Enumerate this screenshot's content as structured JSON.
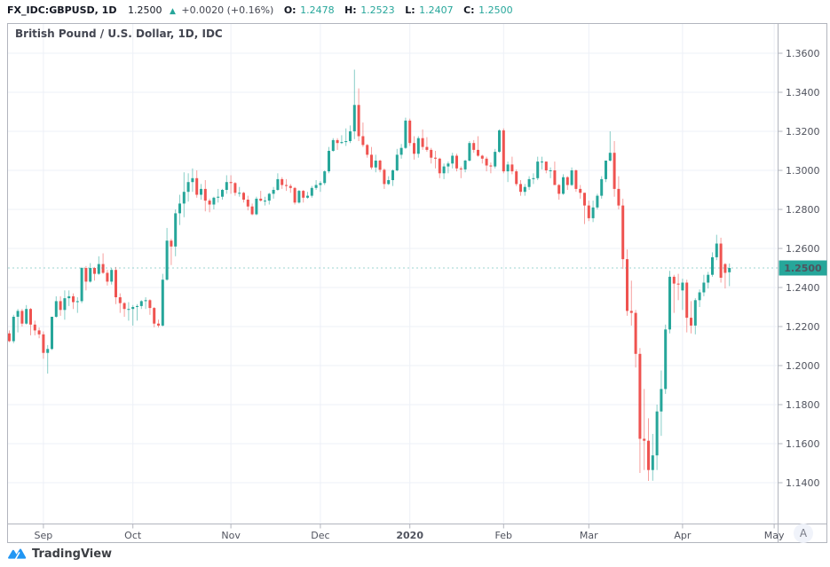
{
  "header": {
    "symbol": "FX_IDC:GBPUSD, 1D",
    "price": "1.2500",
    "direction_arrow": "▲",
    "change": "+0.0020 (+0.16%)",
    "o_label": "O:",
    "o_value": "1.2478",
    "h_label": "H:",
    "h_value": "1.2523",
    "l_label": "L:",
    "l_value": "1.2407",
    "c_label": "C:",
    "c_value": "1.2500"
  },
  "legend": "British Pound / U.S. Dollar, 1D, IDC",
  "price_scale": {
    "auto_button": "A"
  },
  "footer": {
    "brand": "TradingView"
  },
  "colors": {
    "up": "#26a69a",
    "down": "#ef5350",
    "grid": "#edf0f7",
    "border": "#b2b5be",
    "axis_text": "#50535e",
    "badge_bg": "#26a69a",
    "badge_text": "#ffffff",
    "brand_blue": "#2196f3",
    "header_text": "#131722",
    "ohlc_value": "#26a69a"
  },
  "chart_data": {
    "type": "candlestick",
    "title": "British Pound / U.S. Dollar, 1D, IDC",
    "symbol": "FX_IDC:GBPUSD",
    "interval": "1D",
    "last_price": 1.25,
    "last_candle_ohlc": {
      "o": 1.2478,
      "h": 1.2523,
      "l": 1.2407,
      "c": 1.25
    },
    "y_axis": {
      "ticks": [
        1.36,
        1.34,
        1.32,
        1.3,
        1.28,
        1.26,
        1.24,
        1.22,
        1.2,
        1.18,
        1.16,
        1.14
      ],
      "decimals": 4
    },
    "x_axis": {
      "labels": [
        "Sep",
        "Oct",
        "Nov",
        "Dec",
        "2020",
        "Feb",
        "Mar",
        "Apr",
        "May"
      ],
      "indices": [
        8,
        29,
        52,
        73,
        94,
        116,
        136,
        158,
        179.5
      ],
      "bold": [
        false,
        false,
        false,
        false,
        true,
        false,
        false,
        false,
        false
      ]
    },
    "grid": true,
    "candles": [
      [
        1.2165,
        1.218,
        1.212,
        1.2125
      ],
      [
        1.2125,
        1.226,
        1.2115,
        1.225
      ],
      [
        1.225,
        1.229,
        1.217,
        1.228
      ],
      [
        1.228,
        1.229,
        1.22,
        1.2215
      ],
      [
        1.2215,
        1.231,
        1.221,
        1.229
      ],
      [
        1.229,
        1.2295,
        1.2155,
        1.221
      ],
      [
        1.221,
        1.223,
        1.2155,
        1.218
      ],
      [
        1.218,
        1.2195,
        1.214,
        1.216
      ],
      [
        1.216,
        1.2175,
        1.2035,
        1.2065
      ],
      [
        1.2065,
        1.2105,
        1.1959,
        1.2085
      ],
      [
        1.2085,
        1.225,
        1.208,
        1.225
      ],
      [
        1.225,
        1.2355,
        1.2245,
        1.233
      ],
      [
        1.233,
        1.2355,
        1.2255,
        1.2285
      ],
      [
        1.2285,
        1.2385,
        1.2235,
        1.2345
      ],
      [
        1.2345,
        1.2385,
        1.2305,
        1.2355
      ],
      [
        1.2355,
        1.237,
        1.229,
        1.2325
      ],
      [
        1.2325,
        1.235,
        1.227,
        1.233
      ],
      [
        1.233,
        1.2505,
        1.232,
        1.25
      ],
      [
        1.25,
        1.251,
        1.2385,
        1.243
      ],
      [
        1.243,
        1.2525,
        1.2425,
        1.25
      ],
      [
        1.25,
        1.2505,
        1.2435,
        1.247
      ],
      [
        1.247,
        1.256,
        1.2465,
        1.252
      ],
      [
        1.252,
        1.2575,
        1.247,
        1.2475
      ],
      [
        1.2475,
        1.249,
        1.241,
        1.243
      ],
      [
        1.243,
        1.25,
        1.2415,
        1.249
      ],
      [
        1.249,
        1.2505,
        1.2315,
        1.235
      ],
      [
        1.235,
        1.237,
        1.227,
        1.232
      ],
      [
        1.232,
        1.2325,
        1.225,
        1.229
      ],
      [
        1.229,
        1.2325,
        1.223,
        1.229
      ],
      [
        1.229,
        1.231,
        1.2205,
        1.23
      ],
      [
        1.23,
        1.2315,
        1.223,
        1.2305
      ],
      [
        1.2305,
        1.2335,
        1.229,
        1.233
      ],
      [
        1.233,
        1.235,
        1.229,
        1.2335
      ],
      [
        1.2335,
        1.234,
        1.226,
        1.2295
      ],
      [
        1.2295,
        1.23,
        1.2196,
        1.2215
      ],
      [
        1.2215,
        1.2235,
        1.2195,
        1.2205
      ],
      [
        1.2205,
        1.247,
        1.22,
        1.244
      ],
      [
        1.244,
        1.2705,
        1.2435,
        1.264
      ],
      [
        1.264,
        1.265,
        1.2515,
        1.261
      ],
      [
        1.261,
        1.28,
        1.256,
        1.278
      ],
      [
        1.278,
        1.2875,
        1.272,
        1.283
      ],
      [
        1.283,
        1.299,
        1.276,
        1.289
      ],
      [
        1.289,
        1.2985,
        1.284,
        1.294
      ],
      [
        1.294,
        1.301,
        1.289,
        1.296
      ],
      [
        1.296,
        1.3,
        1.286,
        1.2875
      ],
      [
        1.2875,
        1.293,
        1.285,
        1.2905
      ],
      [
        1.2905,
        1.295,
        1.279,
        1.2845
      ],
      [
        1.2845,
        1.2855,
        1.2785,
        1.2825
      ],
      [
        1.2825,
        1.2865,
        1.28,
        1.286
      ],
      [
        1.286,
        1.2905,
        1.2835,
        1.2865
      ],
      [
        1.2865,
        1.2905,
        1.285,
        1.29
      ],
      [
        1.29,
        1.2975,
        1.288,
        1.294
      ],
      [
        1.294,
        1.2975,
        1.288,
        1.2935
      ],
      [
        1.2935,
        1.294,
        1.287,
        1.2885
      ],
      [
        1.2885,
        1.2915,
        1.2865,
        1.2885
      ],
      [
        1.2885,
        1.289,
        1.2835,
        1.285
      ],
      [
        1.285,
        1.287,
        1.2795,
        1.2815
      ],
      [
        1.2815,
        1.283,
        1.277,
        1.2775
      ],
      [
        1.2775,
        1.2865,
        1.277,
        1.2855
      ],
      [
        1.2855,
        1.2895,
        1.284,
        1.2845
      ],
      [
        1.2845,
        1.2865,
        1.282,
        1.2845
      ],
      [
        1.2845,
        1.2885,
        1.2825,
        1.288
      ],
      [
        1.288,
        1.2915,
        1.2855,
        1.29
      ],
      [
        1.29,
        1.2985,
        1.2895,
        1.2955
      ],
      [
        1.2955,
        1.2965,
        1.2905,
        1.2925
      ],
      [
        1.2925,
        1.2955,
        1.2895,
        1.292
      ],
      [
        1.292,
        1.293,
        1.2885,
        1.291
      ],
      [
        1.291,
        1.2915,
        1.2825,
        1.2835
      ],
      [
        1.2835,
        1.29,
        1.283,
        1.2895
      ],
      [
        1.2895,
        1.29,
        1.2835,
        1.286
      ],
      [
        1.286,
        1.289,
        1.2855,
        1.287
      ],
      [
        1.287,
        1.292,
        1.286,
        1.291
      ],
      [
        1.291,
        1.295,
        1.29,
        1.2925
      ],
      [
        1.2925,
        1.2945,
        1.289,
        1.2935
      ],
      [
        1.2935,
        1.3,
        1.2925,
        1.2995
      ],
      [
        1.2995,
        1.312,
        1.2985,
        1.31
      ],
      [
        1.31,
        1.3165,
        1.3095,
        1.3155
      ],
      [
        1.3155,
        1.3165,
        1.3105,
        1.314
      ],
      [
        1.314,
        1.318,
        1.3135,
        1.3145
      ],
      [
        1.3145,
        1.3215,
        1.3125,
        1.315
      ],
      [
        1.315,
        1.323,
        1.314,
        1.32
      ],
      [
        1.32,
        1.3516,
        1.316,
        1.3335
      ],
      [
        1.3335,
        1.342,
        1.315,
        1.3175
      ],
      [
        1.3175,
        1.3245,
        1.312,
        1.313
      ],
      [
        1.313,
        1.3135,
        1.3065,
        1.308
      ],
      [
        1.308,
        1.312,
        1.3005,
        1.3015
      ],
      [
        1.3015,
        1.308,
        1.299,
        1.305
      ],
      [
        1.305,
        1.3055,
        1.299,
        1.3003
      ],
      [
        1.3003,
        1.301,
        1.2905,
        1.293
      ],
      [
        1.293,
        1.297,
        1.2925,
        1.295
      ],
      [
        1.295,
        1.3005,
        1.292,
        1.3
      ],
      [
        1.3,
        1.311,
        1.2995,
        1.308
      ],
      [
        1.308,
        1.3135,
        1.306,
        1.3115
      ],
      [
        1.3115,
        1.327,
        1.311,
        1.3255
      ],
      [
        1.3255,
        1.3265,
        1.3125,
        1.314
      ],
      [
        1.314,
        1.3175,
        1.3055,
        1.3085
      ],
      [
        1.3085,
        1.3175,
        1.3065,
        1.3165
      ],
      [
        1.3165,
        1.321,
        1.3105,
        1.312
      ],
      [
        1.312,
        1.317,
        1.3095,
        1.3105
      ],
      [
        1.3105,
        1.3115,
        1.3035,
        1.3065
      ],
      [
        1.3065,
        1.31,
        1.301,
        1.306
      ],
      [
        1.306,
        1.3065,
        1.296,
        1.2985
      ],
      [
        1.2985,
        1.3035,
        1.2955,
        1.302
      ],
      [
        1.302,
        1.3045,
        1.2985,
        1.3035
      ],
      [
        1.3035,
        1.309,
        1.301,
        1.3075
      ],
      [
        1.3075,
        1.3085,
        1.2995,
        1.301
      ],
      [
        1.301,
        1.302,
        1.296,
        1.3005
      ],
      [
        1.3005,
        1.3055,
        1.299,
        1.305
      ],
      [
        1.305,
        1.315,
        1.3045,
        1.314
      ],
      [
        1.314,
        1.3155,
        1.309,
        1.3105
      ],
      [
        1.3105,
        1.3175,
        1.307,
        1.3075
      ],
      [
        1.3075,
        1.308,
        1.3035,
        1.306
      ],
      [
        1.306,
        1.307,
        1.2995,
        1.3025
      ],
      [
        1.3025,
        1.304,
        1.2985,
        1.302
      ],
      [
        1.302,
        1.311,
        1.301,
        1.3095
      ],
      [
        1.3095,
        1.321,
        1.309,
        1.3205
      ],
      [
        1.3205,
        1.3215,
        1.2985,
        1.2995
      ],
      [
        1.2995,
        1.3045,
        1.294,
        1.303
      ],
      [
        1.303,
        1.307,
        1.298,
        1.2995
      ],
      [
        1.2995,
        1.3005,
        1.292,
        1.293
      ],
      [
        1.293,
        1.295,
        1.287,
        1.289
      ],
      [
        1.289,
        1.293,
        1.287,
        1.2915
      ],
      [
        1.2915,
        1.297,
        1.29,
        1.2955
      ],
      [
        1.2955,
        1.2985,
        1.293,
        1.296
      ],
      [
        1.296,
        1.307,
        1.295,
        1.3045
      ],
      [
        1.3045,
        1.307,
        1.3005,
        1.3045
      ],
      [
        1.3045,
        1.3045,
        1.2985,
        1.3
      ],
      [
        1.3,
        1.3015,
        1.296,
        1.3
      ],
      [
        1.3,
        1.3045,
        1.2925,
        1.2925
      ],
      [
        1.2925,
        1.293,
        1.285,
        1.288
      ],
      [
        1.288,
        1.298,
        1.2875,
        1.2965
      ],
      [
        1.2965,
        1.297,
        1.29,
        1.2925
      ],
      [
        1.2925,
        1.3015,
        1.292,
        1.3
      ],
      [
        1.3,
        1.3005,
        1.289,
        1.2905
      ],
      [
        1.2905,
        1.2925,
        1.2855,
        1.2885
      ],
      [
        1.2885,
        1.2885,
        1.2725,
        1.282
      ],
      [
        1.282,
        1.2845,
        1.274,
        1.2755
      ],
      [
        1.2755,
        1.2845,
        1.2735,
        1.281
      ],
      [
        1.281,
        1.288,
        1.28,
        1.287
      ],
      [
        1.287,
        1.297,
        1.2855,
        1.2955
      ],
      [
        1.2955,
        1.305,
        1.294,
        1.305
      ],
      [
        1.305,
        1.32,
        1.3045,
        1.309
      ],
      [
        1.309,
        1.315,
        1.2865,
        1.2905
      ],
      [
        1.2905,
        1.297,
        1.28,
        1.282
      ],
      [
        1.282,
        1.2855,
        1.2495,
        1.2545
      ],
      [
        1.2545,
        1.2595,
        1.2255,
        1.228
      ],
      [
        1.228,
        1.2435,
        1.2205,
        1.227
      ],
      [
        1.227,
        1.2285,
        1.199,
        1.206
      ],
      [
        1.206,
        1.209,
        1.145,
        1.1625
      ],
      [
        1.1625,
        1.188,
        1.1465,
        1.1615
      ],
      [
        1.1615,
        1.173,
        1.1409,
        1.1465
      ],
      [
        1.1465,
        1.165,
        1.141,
        1.154
      ],
      [
        1.154,
        1.18,
        1.1465,
        1.1765
      ],
      [
        1.1765,
        1.1975,
        1.164,
        1.188
      ],
      [
        1.188,
        1.221,
        1.1855,
        1.2185
      ],
      [
        1.2185,
        1.2485,
        1.2165,
        1.2455
      ],
      [
        1.2455,
        1.2465,
        1.227,
        1.242
      ],
      [
        1.242,
        1.247,
        1.2335,
        1.2415
      ],
      [
        1.2385,
        1.2445,
        1.2285,
        1.2425
      ],
      [
        1.2425,
        1.244,
        1.217,
        1.2245
      ],
      [
        1.2245,
        1.233,
        1.2165,
        1.2205
      ],
      [
        1.2205,
        1.2345,
        1.216,
        1.2335
      ],
      [
        1.2335,
        1.239,
        1.23,
        1.2375
      ],
      [
        1.2375,
        1.2465,
        1.2355,
        1.2425
      ],
      [
        1.2425,
        1.248,
        1.2395,
        1.2465
      ],
      [
        1.2465,
        1.258,
        1.2455,
        1.2555
      ],
      [
        1.2555,
        1.267,
        1.254,
        1.2625
      ],
      [
        1.2625,
        1.2655,
        1.2425,
        1.245
      ],
      [
        1.252,
        1.2525,
        1.2395,
        1.2475
      ],
      [
        1.2478,
        1.2523,
        1.2407,
        1.25
      ]
    ]
  }
}
